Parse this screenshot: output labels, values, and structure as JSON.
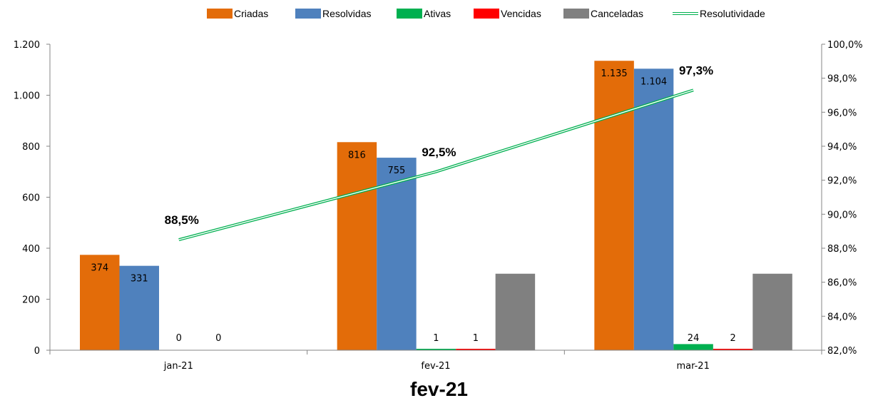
{
  "chart_data": {
    "type": "bar",
    "categories": [
      "jan-21",
      "fev-21",
      "mar-21"
    ],
    "series": [
      {
        "name": "Criadas",
        "color": "#e36c09",
        "values": [
          374,
          816,
          1135
        ],
        "labels": [
          "374",
          "816",
          "1.135"
        ]
      },
      {
        "name": "Resolvidas",
        "color": "#4f81bd",
        "values": [
          331,
          755,
          1104
        ],
        "labels": [
          "331",
          "755",
          "1.104"
        ]
      },
      {
        "name": "Ativas",
        "color": "#00b050",
        "values": [
          0,
          1,
          24
        ],
        "labels": [
          "0",
          "1",
          "24"
        ]
      },
      {
        "name": "Vencidas",
        "color": "#ff0000",
        "values": [
          0,
          1,
          2
        ],
        "labels": [
          "0",
          "1",
          "2"
        ]
      },
      {
        "name": "Canceladas",
        "color": "#808080",
        "values": [
          0,
          300,
          300
        ],
        "labels": [
          "",
          "",
          ""
        ]
      }
    ],
    "line_series": {
      "name": "Resolutividade",
      "color": "#00b050",
      "axis": "secondary",
      "values": [
        88.5,
        92.5,
        97.3
      ],
      "labels": [
        "88,5%",
        "92,5%",
        "97,3%"
      ]
    },
    "ylim": [
      0,
      1200
    ],
    "yticks": [
      0,
      200,
      400,
      600,
      800,
      1000,
      1200
    ],
    "ytick_labels": [
      "0",
      "200",
      "400",
      "600",
      "800",
      "1.000",
      "1.200"
    ],
    "y2lim": [
      82,
      100
    ],
    "y2ticks": [
      82,
      84,
      86,
      88,
      90,
      92,
      94,
      96,
      98,
      100
    ],
    "y2tick_labels": [
      "82,0%",
      "84,0%",
      "86,0%",
      "88,0%",
      "90,0%",
      "92,0%",
      "94,0%",
      "96,0%",
      "98,0%",
      "100,0%"
    ],
    "legend_position": "top",
    "grid": false,
    "title": "fev-21"
  }
}
